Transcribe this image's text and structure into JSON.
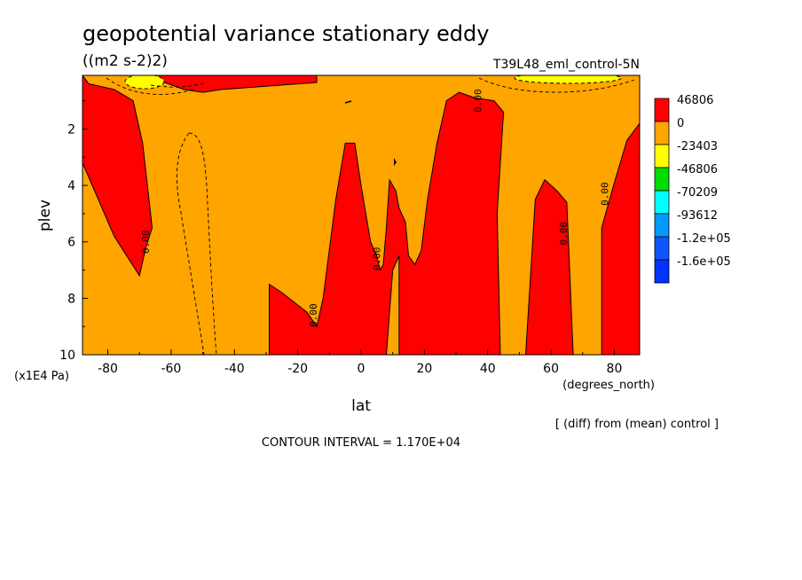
{
  "chart_data": {
    "type": "contour",
    "title": "geopotential variance stationary eddy",
    "units": "((m2 s-2)2)",
    "run_label": "T39L48_eml_control-5N",
    "xlabel": "lat",
    "x_units": "(degrees_north)",
    "ylabel": "plev",
    "y_units": "(x1E4 Pa)",
    "xlim": [
      -88,
      88
    ],
    "ylim": [
      10,
      0.1
    ],
    "x_ticks": [
      "-80",
      "-60",
      "-40",
      "-20",
      "0",
      "20",
      "40",
      "60",
      "80"
    ],
    "y_ticks": [
      "2",
      "4",
      "6",
      "8",
      "10"
    ],
    "contour_interval": "CONTOUR INTERVAL = 1.170E+04",
    "comparison_note": "[ (diff) from (mean) control ]",
    "contour_label": "0.00",
    "legend": [
      {
        "label": "46806",
        "color": "#ff0000"
      },
      {
        "label": "0",
        "color": "#ffa500"
      },
      {
        "label": "-23403",
        "color": "#ffff00"
      },
      {
        "label": "-46806",
        "color": "#00dd00"
      },
      {
        "label": "-70209",
        "color": "#00ffff"
      },
      {
        "label": "-93612",
        "color": "#0099ff"
      },
      {
        "label": "-1.2e+05",
        "color": "#1155ff"
      },
      {
        "label": "-1.6e+05",
        "color": "#0033ff"
      }
    ],
    "background_color": "#ffa500",
    "positive_region_color": "#ff0000",
    "positive_regions": [
      {
        "name": "south-west",
        "outline": [
          [
            -88,
            0.1
          ],
          [
            -88,
            3.2
          ],
          [
            -78,
            5.8
          ],
          [
            -70,
            7.2
          ],
          [
            -68,
            6.2
          ],
          [
            -66,
            5.5
          ],
          [
            -69,
            2.5
          ],
          [
            -72,
            1.0
          ],
          [
            -78,
            0.6
          ],
          [
            -86,
            0.4
          ]
        ]
      },
      {
        "name": "top-band",
        "outline": [
          [
            -66,
            0.1
          ],
          [
            -46,
            0.1
          ],
          [
            -14,
            0.1
          ],
          [
            -14,
            0.35
          ],
          [
            -32,
            0.5
          ],
          [
            -44,
            0.6
          ],
          [
            -50,
            0.7
          ],
          [
            -56,
            0.6
          ],
          [
            -62,
            0.35
          ]
        ]
      },
      {
        "name": "equatorial",
        "outline": [
          [
            -29,
            10
          ],
          [
            -29,
            7.5
          ],
          [
            -25,
            7.8
          ],
          [
            -17,
            8.5
          ],
          [
            -14,
            9.0
          ],
          [
            -12,
            8.0
          ],
          [
            -8,
            4.5
          ],
          [
            -5,
            2.5
          ],
          [
            -2,
            2.5
          ],
          [
            0,
            4.0
          ],
          [
            3,
            6.0
          ],
          [
            5,
            6.5
          ],
          [
            6,
            7.0
          ],
          [
            7,
            6.8
          ],
          [
            8,
            5.5
          ],
          [
            9,
            3.8
          ],
          [
            11,
            4.2
          ],
          [
            12,
            4.8
          ],
          [
            14,
            5.3
          ],
          [
            15,
            6.5
          ],
          [
            17,
            6.8
          ],
          [
            19,
            6.3
          ],
          [
            21,
            4.5
          ],
          [
            24,
            2.5
          ],
          [
            27,
            1.0
          ],
          [
            31,
            0.7
          ],
          [
            36,
            0.9
          ],
          [
            42,
            1.0
          ],
          [
            45,
            1.4
          ],
          [
            43,
            5.0
          ],
          [
            44,
            10
          ],
          [
            12,
            10
          ],
          [
            12,
            6.5
          ],
          [
            10,
            7.0
          ],
          [
            8,
            10
          ],
          [
            -29,
            10
          ]
        ]
      },
      {
        "name": "southern-60N",
        "outline": [
          [
            52,
            10
          ],
          [
            55,
            4.5
          ],
          [
            58,
            3.8
          ],
          [
            62,
            4.2
          ],
          [
            65,
            4.6
          ],
          [
            67,
            10
          ]
        ]
      },
      {
        "name": "north-pole",
        "outline": [
          [
            76,
            10
          ],
          [
            76,
            5.5
          ],
          [
            80,
            3.9
          ],
          [
            84,
            2.4
          ],
          [
            88,
            1.8
          ],
          [
            88,
            10
          ]
        ]
      }
    ],
    "zero_contour_labels": [
      {
        "x": -67,
        "y": 6.0
      },
      {
        "x": -14,
        "y": 8.6
      },
      {
        "x": 6,
        "y": 6.6
      },
      {
        "x": 38,
        "y": 1.0
      },
      {
        "x": 65,
        "y": 5.7
      },
      {
        "x": 78,
        "y": 4.3
      }
    ]
  }
}
